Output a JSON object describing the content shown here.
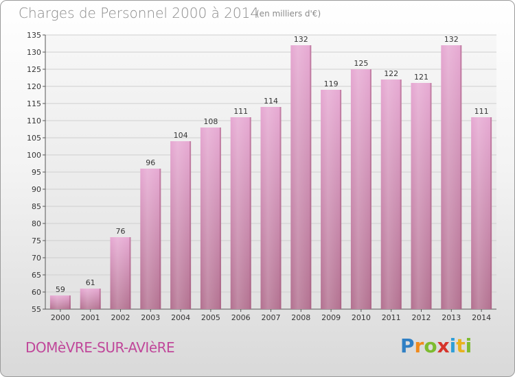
{
  "header": {
    "title": "Charges de Personnel 2000 à 2014",
    "subtitle": "(en milliers d'€)"
  },
  "footer": {
    "commune": "DOMèVRE-SUR-AVIèRE",
    "logo_letters": [
      "P",
      "r",
      "o",
      "x",
      "i",
      "t",
      "i"
    ],
    "logo_colors": [
      "#2f7fc4",
      "#f08a1c",
      "#7dbb2f",
      "#d6342b",
      "#2f9fd8",
      "#e8b21e",
      "#7dbb2f"
    ]
  },
  "chart_data": {
    "type": "bar",
    "categories": [
      "2000",
      "2001",
      "2002",
      "2003",
      "2004",
      "2005",
      "2006",
      "2007",
      "2008",
      "2009",
      "2010",
      "2011",
      "2012",
      "2013",
      "2014"
    ],
    "values": [
      59,
      61,
      76,
      96,
      104,
      108,
      111,
      114,
      132,
      119,
      125,
      122,
      121,
      132,
      111
    ],
    "ylim": [
      55,
      135
    ],
    "yticks": [
      55,
      60,
      65,
      70,
      75,
      80,
      85,
      90,
      95,
      100,
      105,
      110,
      115,
      120,
      125,
      130,
      135
    ],
    "bar_color": "#d28fbb",
    "grid": true
  }
}
